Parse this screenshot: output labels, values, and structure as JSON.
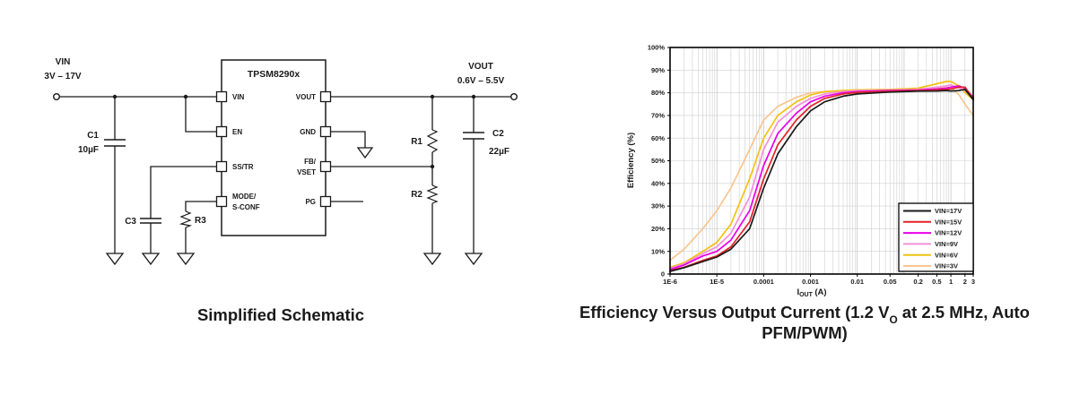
{
  "schematic": {
    "caption": "Simplified Schematic",
    "ic_title": "TPSM8290x",
    "vin_label": "VIN",
    "vin_range": "3V – 17V",
    "vout_label": "VOUT",
    "vout_range": "0.6V – 5.5V",
    "pins": {
      "vin": "VIN",
      "en": "EN",
      "sstr": "SS/TR",
      "mode_line1": "MODE/",
      "mode_line2": "S-CONF",
      "vout": "VOUT",
      "gnd": "GND",
      "fb_line1": "FB/",
      "fb_line2": "VSET",
      "pg": "PG"
    },
    "refs": {
      "c1": "C1",
      "c1_value": "10µF",
      "c2": "C2",
      "c2_value": "22µF",
      "c3": "C3",
      "r1": "R1",
      "r2": "R2",
      "r3": "R3"
    }
  },
  "chart": {
    "caption_pre": "Efficiency Versus Output Current (1.2 V",
    "caption_sub": "O",
    "caption_post": " at 2.5 MHz, Auto PFM/PWM)",
    "ylabel": "Efficiency (%)",
    "xlabel_pre": "I",
    "xlabel_sub": "OUT",
    "xlabel_post": "(A)"
  },
  "chart_data": {
    "type": "line",
    "x_scale": "log",
    "xlim": [
      1e-06,
      3
    ],
    "ylim": [
      0,
      100
    ],
    "grid": "log-minor-on",
    "legend_position": "bottom-right",
    "xlabel": "IOUT (A)",
    "ylabel": "Efficiency (%)",
    "x_ticks": [
      {
        "v": 1e-06,
        "label": "1E-6"
      },
      {
        "v": 1e-05,
        "label": "1E-5"
      },
      {
        "v": 0.0001,
        "label": "0.0001"
      },
      {
        "v": 0.001,
        "label": "0.001"
      },
      {
        "v": 0.01,
        "label": "0.01"
      },
      {
        "v": 0.05,
        "label": "0.05"
      },
      {
        "v": 0.2,
        "label": "0.2"
      },
      {
        "v": 0.5,
        "label": "0.5"
      },
      {
        "v": 1,
        "label": "1"
      },
      {
        "v": 2,
        "label": "2"
      },
      {
        "v": 3,
        "label": "3"
      }
    ],
    "y_ticks": [
      {
        "v": 0,
        "label": "0"
      },
      {
        "v": 10,
        "label": "10%"
      },
      {
        "v": 20,
        "label": "20%"
      },
      {
        "v": 30,
        "label": "30%"
      },
      {
        "v": 40,
        "label": "40%"
      },
      {
        "v": 50,
        "label": "50%"
      },
      {
        "v": 60,
        "label": "60%"
      },
      {
        "v": 70,
        "label": "70%"
      },
      {
        "v": 80,
        "label": "80%"
      },
      {
        "v": 90,
        "label": "90%"
      },
      {
        "v": 100,
        "label": "100%"
      }
    ],
    "x": [
      1e-06,
      2e-06,
      5e-06,
      1e-05,
      2e-05,
      5e-05,
      0.0001,
      0.0002,
      0.0005,
      0.001,
      0.002,
      0.005,
      0.01,
      0.05,
      0.2,
      0.5,
      0.8,
      1,
      1.5,
      2,
      3
    ],
    "series": [
      {
        "name": "VIN=17V",
        "color": "#1a1a1a",
        "values": [
          1.2,
          2.8,
          5.5,
          7.5,
          11,
          20,
          38,
          53,
          65,
          72,
          76,
          78.5,
          79.5,
          80.3,
          80.7,
          80.8,
          81,
          80.8,
          81,
          81.5,
          77
        ]
      },
      {
        "name": "VIN=15V",
        "color": "#e22128",
        "values": [
          1.5,
          3,
          6,
          8,
          12,
          23,
          42,
          57,
          68,
          74,
          77.5,
          79.5,
          80.2,
          80.7,
          81,
          81.3,
          81.5,
          81.7,
          82.5,
          82.5,
          77.5
        ]
      },
      {
        "name": "VIN=12V",
        "color": "#e800e8",
        "values": [
          2,
          4,
          8,
          10,
          15,
          28,
          48,
          62,
          71,
          76,
          78.5,
          80,
          80.5,
          81,
          81.2,
          81.7,
          82,
          82.5,
          83,
          82,
          78
        ]
      },
      {
        "name": "VIN=9V",
        "color": "#f291d9",
        "values": [
          2.5,
          4.5,
          9,
          12,
          18,
          34,
          55,
          67,
          74,
          77.5,
          79.5,
          80.5,
          81,
          81.2,
          81.5,
          82.5,
          83,
          83.5,
          82,
          81,
          78
        ]
      },
      {
        "name": "VIN=6V",
        "color": "#f3c211",
        "values": [
          3,
          5,
          10,
          14,
          22,
          42,
          60,
          70,
          76,
          79,
          80.5,
          81,
          81.3,
          81.5,
          82,
          84,
          85,
          85,
          83,
          80,
          77
        ]
      },
      {
        "name": "VIN=3V",
        "color": "#f9c58f",
        "values": [
          6,
          11,
          20,
          28,
          38,
          55,
          68,
          74,
          78,
          80,
          80.5,
          81,
          81.2,
          81,
          81.5,
          82,
          82.5,
          82.3,
          79,
          75,
          70
        ]
      }
    ]
  }
}
